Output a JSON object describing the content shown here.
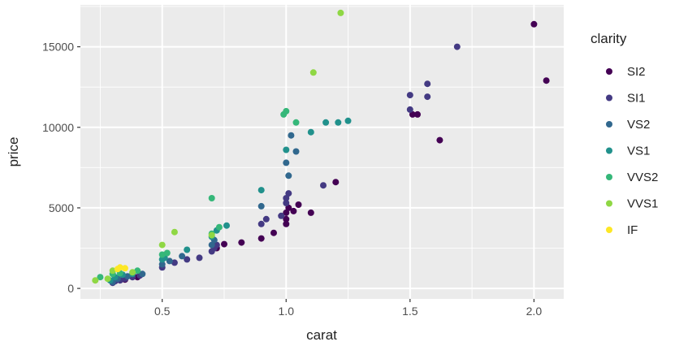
{
  "chart_data": {
    "type": "scatter",
    "title": "",
    "xlabel": "carat",
    "ylabel": "price",
    "xlim": [
      0.17,
      2.12
    ],
    "ylim": [
      -650,
      17600
    ],
    "x_ticks": [
      0.5,
      1.0,
      1.5,
      2.0
    ],
    "x_tick_labels": [
      "0.5",
      "1.0",
      "1.5",
      "2.0"
    ],
    "y_ticks": [
      0,
      5000,
      10000,
      15000
    ],
    "y_tick_labels": [
      "0",
      "5000",
      "10000",
      "15000"
    ],
    "grid": true,
    "legend_title": "clarity",
    "legend_position": "right",
    "panel_background": "#ebebeb",
    "grid_color": "#ffffff",
    "series": [
      {
        "name": "SI2",
        "color": "#440154",
        "points": [
          [
            0.72,
            2500
          ],
          [
            0.75,
            2750
          ],
          [
            0.82,
            2850
          ],
          [
            0.9,
            3100
          ],
          [
            0.95,
            3450
          ],
          [
            1.0,
            4000
          ],
          [
            1.0,
            4300
          ],
          [
            1.0,
            4700
          ],
          [
            1.01,
            5000
          ],
          [
            1.03,
            4800
          ],
          [
            1.05,
            5200
          ],
          [
            1.1,
            4700
          ],
          [
            1.2,
            6600
          ],
          [
            1.51,
            10800
          ],
          [
            1.53,
            10800
          ],
          [
            1.62,
            9200
          ],
          [
            2.0,
            16400
          ],
          [
            2.05,
            12900
          ],
          [
            0.4,
            700
          ],
          [
            0.35,
            550
          ]
        ]
      },
      {
        "name": "SI1",
        "color": "#443a83",
        "points": [
          [
            0.3,
            350
          ],
          [
            0.31,
            450
          ],
          [
            0.33,
            500
          ],
          [
            0.35,
            600
          ],
          [
            0.38,
            700
          ],
          [
            0.41,
            800
          ],
          [
            0.5,
            1300
          ],
          [
            0.55,
            1600
          ],
          [
            0.6,
            1800
          ],
          [
            0.65,
            1900
          ],
          [
            0.7,
            2300
          ],
          [
            0.71,
            2500
          ],
          [
            0.72,
            2700
          ],
          [
            0.9,
            4000
          ],
          [
            0.92,
            4300
          ],
          [
            0.98,
            4500
          ],
          [
            1.0,
            5300
          ],
          [
            1.0,
            5600
          ],
          [
            1.01,
            5900
          ],
          [
            1.15,
            6400
          ],
          [
            1.5,
            12000
          ],
          [
            1.5,
            11100
          ],
          [
            1.57,
            11900
          ],
          [
            1.57,
            12700
          ],
          [
            1.69,
            15000
          ]
        ]
      },
      {
        "name": "VS2",
        "color": "#31688e",
        "points": [
          [
            0.3,
            400
          ],
          [
            0.32,
            600
          ],
          [
            0.36,
            750
          ],
          [
            0.42,
            900
          ],
          [
            0.5,
            1500
          ],
          [
            0.53,
            1700
          ],
          [
            0.58,
            2000
          ],
          [
            0.7,
            2700
          ],
          [
            0.71,
            3000
          ],
          [
            0.9,
            5100
          ],
          [
            1.0,
            7800
          ],
          [
            1.01,
            7000
          ],
          [
            1.02,
            9500
          ],
          [
            1.04,
            8500
          ]
        ]
      },
      {
        "name": "VS1",
        "color": "#21918c",
        "points": [
          [
            0.29,
            500
          ],
          [
            0.31,
            700
          ],
          [
            0.34,
            850
          ],
          [
            0.38,
            900
          ],
          [
            0.5,
            1800
          ],
          [
            0.51,
            1900
          ],
          [
            0.6,
            2400
          ],
          [
            0.7,
            3200
          ],
          [
            0.72,
            3600
          ],
          [
            0.76,
            3900
          ],
          [
            0.9,
            6100
          ],
          [
            1.0,
            8600
          ],
          [
            1.1,
            9700
          ],
          [
            1.16,
            10300
          ],
          [
            1.21,
            10300
          ],
          [
            1.25,
            10400
          ]
        ]
      },
      {
        "name": "VVS2",
        "color": "#35b779",
        "points": [
          [
            0.25,
            700
          ],
          [
            0.3,
            900
          ],
          [
            0.33,
            950
          ],
          [
            0.4,
            1100
          ],
          [
            0.5,
            2100
          ],
          [
            0.52,
            2200
          ],
          [
            0.7,
            3400
          ],
          [
            0.7,
            5600
          ],
          [
            0.73,
            3800
          ],
          [
            0.99,
            10800
          ],
          [
            1.0,
            11000
          ],
          [
            1.04,
            10300
          ]
        ]
      },
      {
        "name": "VVS1",
        "color": "#8fd744",
        "points": [
          [
            0.23,
            500
          ],
          [
            0.28,
            600
          ],
          [
            0.3,
            1100
          ],
          [
            0.38,
            1000
          ],
          [
            0.5,
            2700
          ],
          [
            0.55,
            3500
          ],
          [
            0.7,
            3300
          ],
          [
            1.11,
            13400
          ],
          [
            1.22,
            17100
          ]
        ]
      },
      {
        "name": "IF",
        "color": "#fde725",
        "points": [
          [
            0.32,
            1200
          ],
          [
            0.33,
            1300
          ],
          [
            0.35,
            1250
          ]
        ]
      }
    ]
  }
}
